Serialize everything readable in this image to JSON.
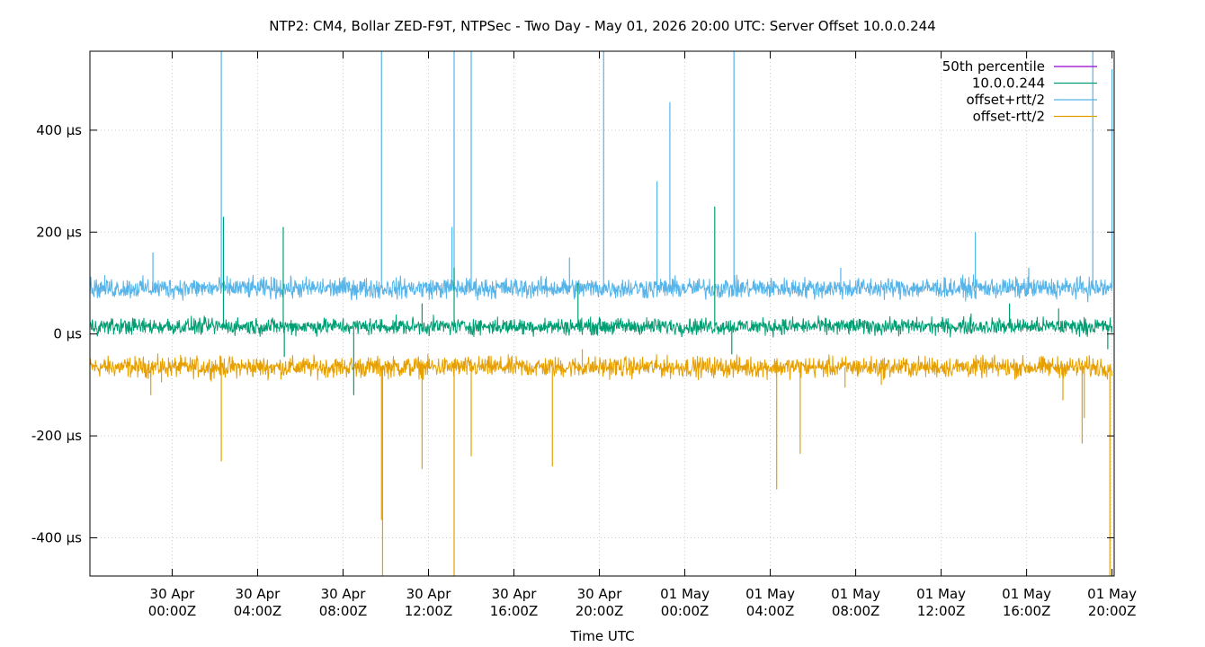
{
  "chart_data": {
    "type": "line",
    "title": "NTP2: CM4, Bollar ZED-F9T, NTPSec - Two Day - May 01, 2026 20:00 UTC: Server Offset 10.0.0.244",
    "xlabel": "Time UTC",
    "ylabel": "",
    "x_unit": "hours relative to 30 Apr 00:00Z",
    "xlim": [
      -3.85,
      44.1
    ],
    "ylim": [
      -475,
      555
    ],
    "grid": true,
    "grid_style": "dotted",
    "legend_position": "top-right",
    "y_ticks": [
      {
        "value": 400,
        "label": "400 µs"
      },
      {
        "value": 200,
        "label": "200 µs"
      },
      {
        "value": 0,
        "label": "0 µs"
      },
      {
        "value": -200,
        "label": "-200 µs"
      },
      {
        "value": -400,
        "label": "-400 µs"
      }
    ],
    "x_ticks": [
      {
        "value": 0,
        "line1": "30 Apr",
        "line2": "00:00Z"
      },
      {
        "value": 4,
        "line1": "30 Apr",
        "line2": "04:00Z"
      },
      {
        "value": 8,
        "line1": "30 Apr",
        "line2": "08:00Z"
      },
      {
        "value": 12,
        "line1": "30 Apr",
        "line2": "12:00Z"
      },
      {
        "value": 16,
        "line1": "30 Apr",
        "line2": "16:00Z"
      },
      {
        "value": 20,
        "line1": "30 Apr",
        "line2": "20:00Z"
      },
      {
        "value": 24,
        "line1": "01 May",
        "line2": "00:00Z"
      },
      {
        "value": 28,
        "line1": "01 May",
        "line2": "04:00Z"
      },
      {
        "value": 32,
        "line1": "01 May",
        "line2": "08:00Z"
      },
      {
        "value": 36,
        "line1": "01 May",
        "line2": "12:00Z"
      },
      {
        "value": 40,
        "line1": "01 May",
        "line2": "16:00Z"
      },
      {
        "value": 44,
        "line1": "01 May",
        "line2": "20:00Z"
      }
    ],
    "series": [
      {
        "name": "50th percentile",
        "color": "#9400d3",
        "baseline": 15,
        "noise": 0,
        "spikes": []
      },
      {
        "name": "10.0.0.244",
        "color": "#009e73",
        "baseline": 15,
        "noise": 8,
        "spikes": [
          [
            -0.2,
            30
          ],
          [
            2.4,
            230
          ],
          [
            5.2,
            210
          ],
          [
            5.25,
            -45
          ],
          [
            7.2,
            30
          ],
          [
            8.5,
            -120
          ],
          [
            11.0,
            10
          ],
          [
            11.7,
            60
          ],
          [
            13.2,
            130
          ],
          [
            19.0,
            100
          ],
          [
            25.4,
            250
          ],
          [
            26.2,
            -40
          ],
          [
            37.4,
            40
          ],
          [
            39.2,
            60
          ],
          [
            41.5,
            50
          ],
          [
            43.8,
            -30
          ]
        ]
      },
      {
        "name": "offset+rtt/2",
        "color": "#56b4e9",
        "baseline": 90,
        "noise": 10,
        "spikes": [
          [
            -0.9,
            160
          ],
          [
            2.3,
            555
          ],
          [
            9.8,
            555
          ],
          [
            13.1,
            210
          ],
          [
            13.2,
            555
          ],
          [
            14.0,
            555
          ],
          [
            18.6,
            150
          ],
          [
            20.2,
            555
          ],
          [
            22.7,
            300
          ],
          [
            23.3,
            455
          ],
          [
            26.3,
            555
          ],
          [
            31.3,
            130
          ],
          [
            37.6,
            200
          ],
          [
            40.1,
            130
          ],
          [
            43.1,
            555
          ],
          [
            44.0,
            520
          ]
        ]
      },
      {
        "name": "offset-rtt/2",
        "color": "#e69f00",
        "baseline": -65,
        "noise": 10,
        "spikes": [
          [
            -1.0,
            -120
          ],
          [
            -0.5,
            -95
          ],
          [
            2.3,
            -250
          ],
          [
            9.8,
            -365
          ],
          [
            9.85,
            -475
          ],
          [
            11.7,
            -265
          ],
          [
            13.2,
            -475
          ],
          [
            14.0,
            -240
          ],
          [
            17.8,
            -260
          ],
          [
            19.2,
            -30
          ],
          [
            28.3,
            -305
          ],
          [
            29.4,
            -235
          ],
          [
            31.5,
            -105
          ],
          [
            33.2,
            -100
          ],
          [
            41.7,
            -130
          ],
          [
            42.6,
            -215
          ],
          [
            42.7,
            -165
          ],
          [
            43.9,
            -475
          ]
        ]
      }
    ]
  }
}
